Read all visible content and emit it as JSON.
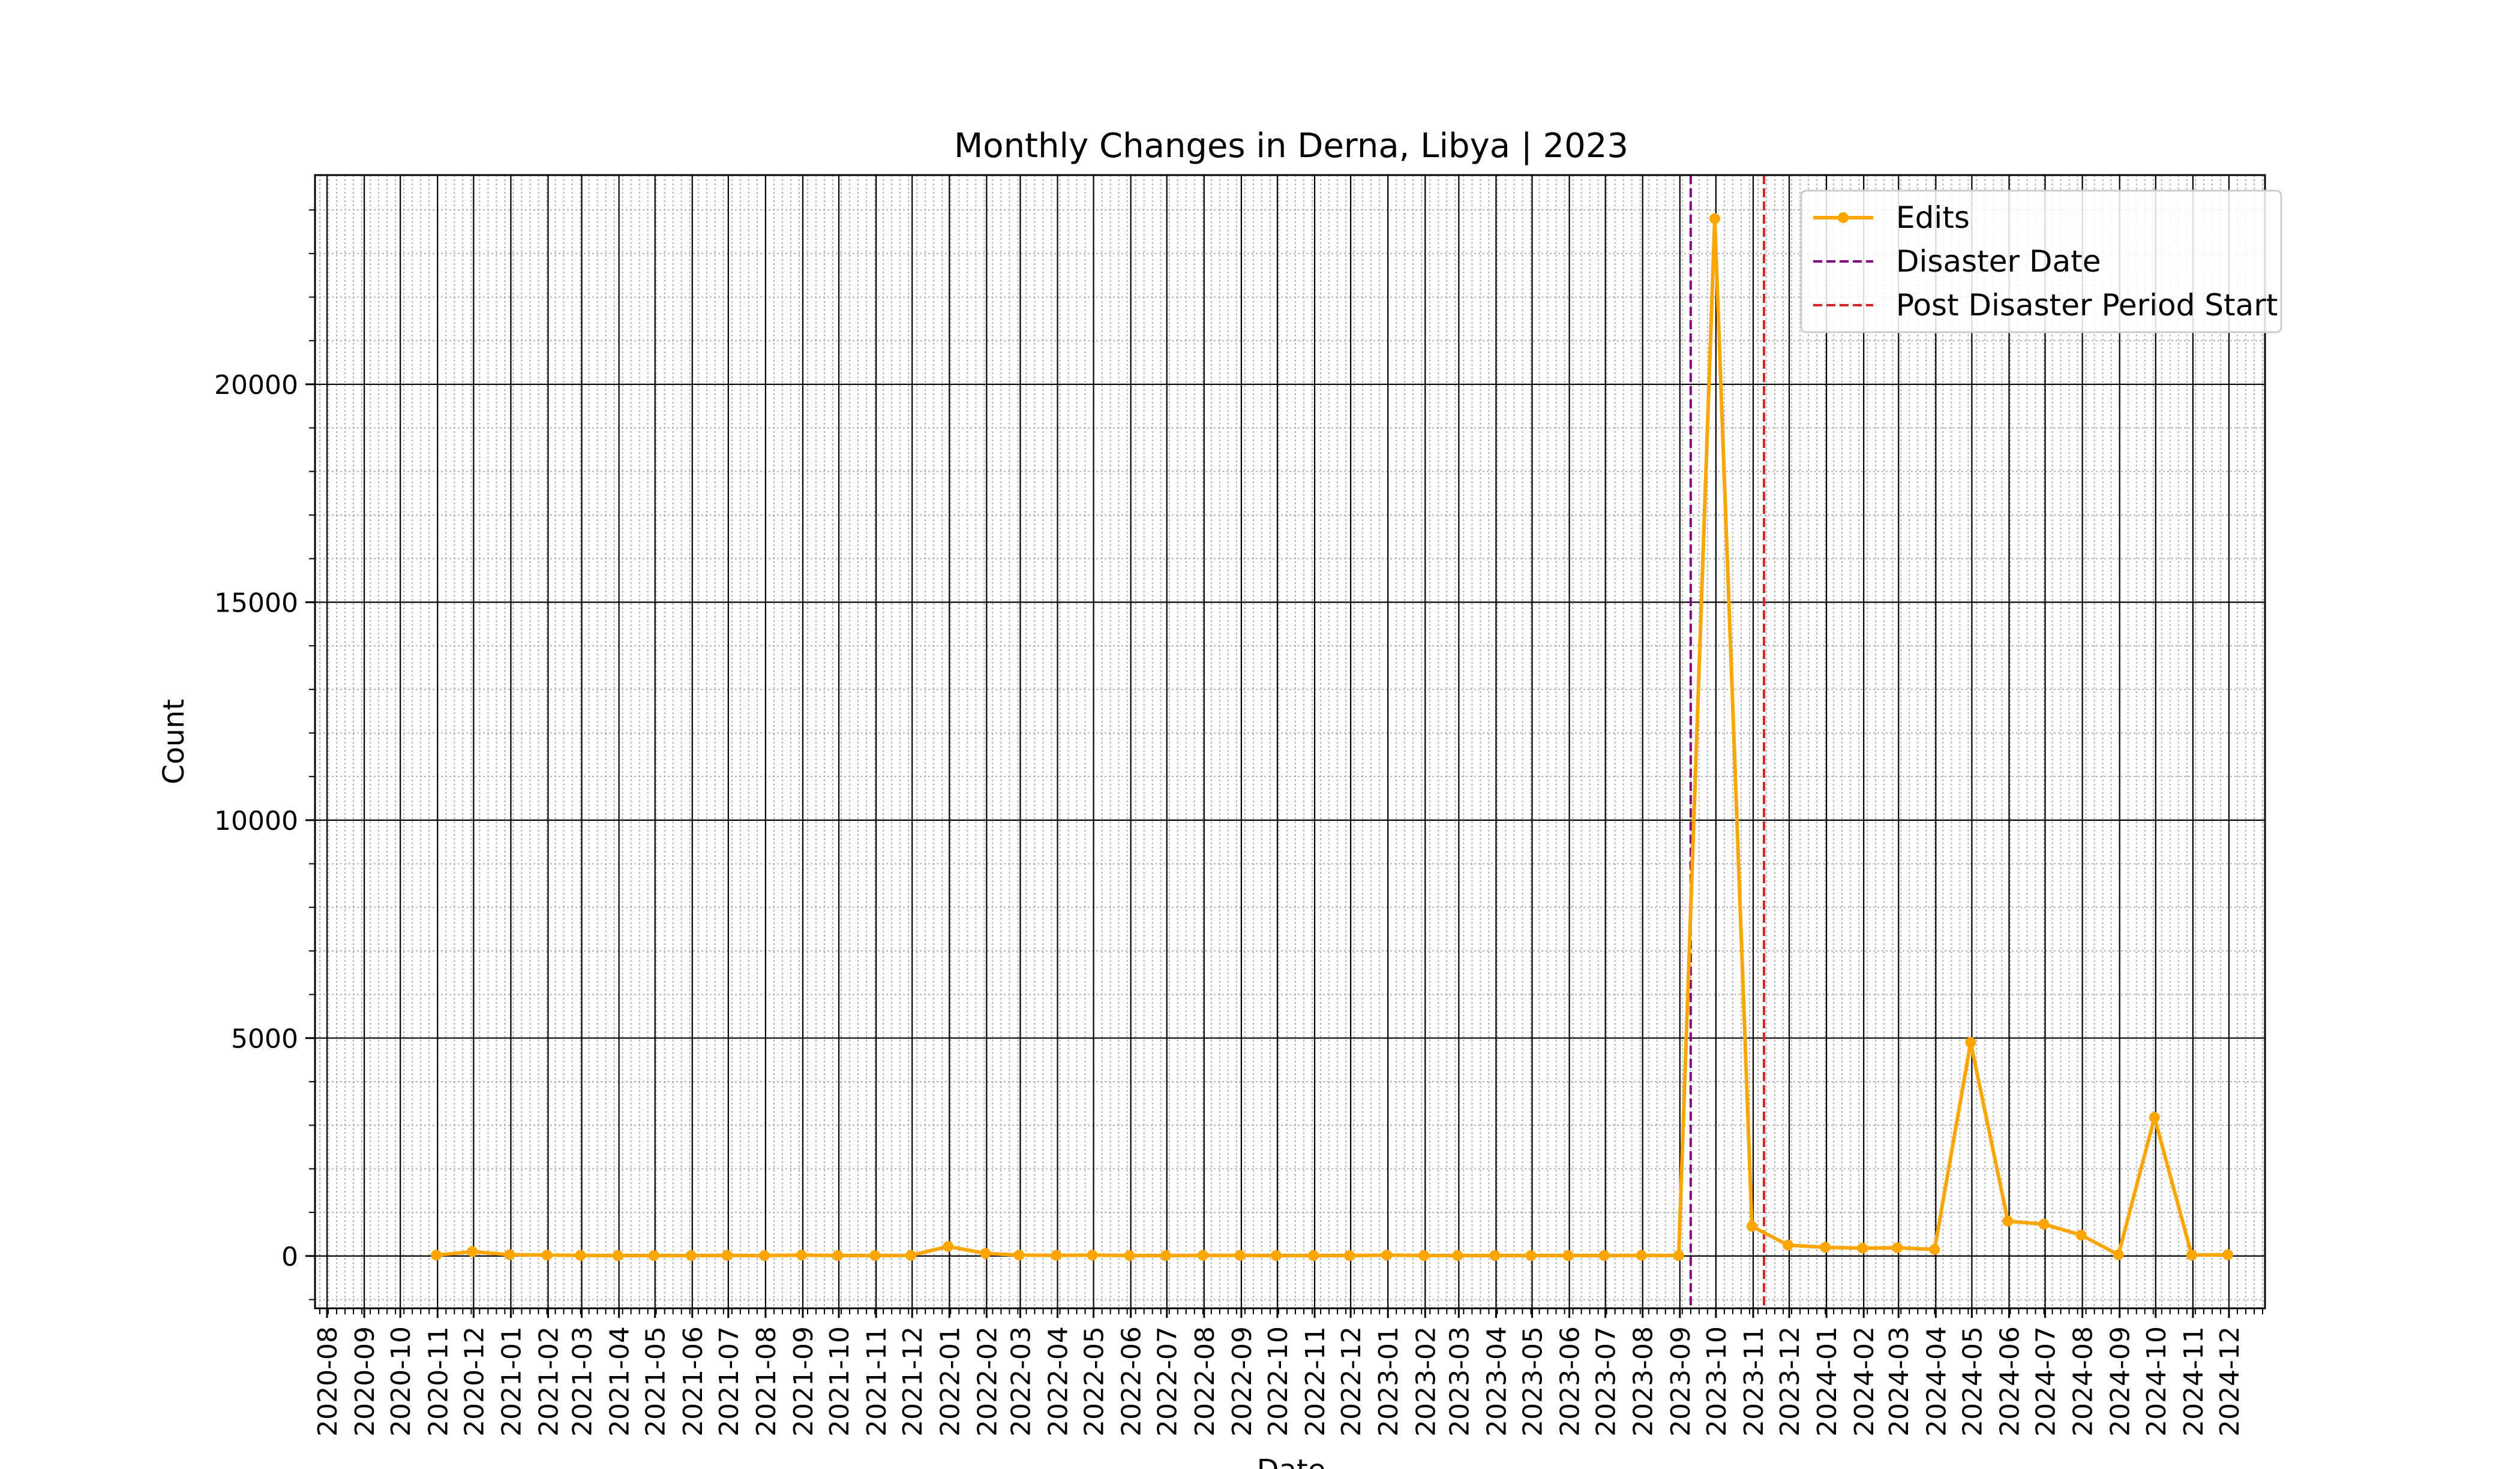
{
  "chart_data": {
    "type": "line",
    "title": "Monthly Changes in Derna, Libya | 2023",
    "xlabel": "Date",
    "ylabel": "Count",
    "x_axis_type": "date",
    "xlim": [
      "2020-07-22",
      "2024-12-31"
    ],
    "ylim": [
      -1200,
      24800
    ],
    "y_ticks": [
      0,
      5000,
      10000,
      15000,
      20000
    ],
    "y_tick_labels": [
      "0",
      "5000",
      "10000",
      "15000",
      "20000"
    ],
    "x_ticks": [
      "2020-08-01",
      "2020-09-01",
      "2020-10-01",
      "2020-11-01",
      "2020-12-01",
      "2021-01-01",
      "2021-02-01",
      "2021-03-01",
      "2021-04-01",
      "2021-05-01",
      "2021-06-01",
      "2021-07-01",
      "2021-08-01",
      "2021-09-01",
      "2021-10-01",
      "2021-11-01",
      "2021-12-01",
      "2022-01-01",
      "2022-02-01",
      "2022-03-01",
      "2022-04-01",
      "2022-05-01",
      "2022-06-01",
      "2022-07-01",
      "2022-08-01",
      "2022-09-01",
      "2022-10-01",
      "2022-11-01",
      "2022-12-01",
      "2023-01-01",
      "2023-02-01",
      "2023-03-01",
      "2023-04-01",
      "2023-05-01",
      "2023-06-01",
      "2023-07-01",
      "2023-08-01",
      "2023-09-01",
      "2023-10-01",
      "2023-11-01",
      "2023-12-01",
      "2024-01-01",
      "2024-02-01",
      "2024-03-01",
      "2024-04-01",
      "2024-05-01",
      "2024-06-01",
      "2024-07-01",
      "2024-08-01",
      "2024-09-01",
      "2024-10-01",
      "2024-11-01",
      "2024-12-01"
    ],
    "x_tick_labels": [
      "2020-08",
      "2020-09",
      "2020-10",
      "2020-11",
      "2020-12",
      "2021-01",
      "2021-02",
      "2021-03",
      "2021-04",
      "2021-05",
      "2021-06",
      "2021-07",
      "2021-08",
      "2021-09",
      "2021-10",
      "2021-11",
      "2021-12",
      "2022-01",
      "2022-02",
      "2022-03",
      "2022-04",
      "2022-05",
      "2022-06",
      "2022-07",
      "2022-08",
      "2022-09",
      "2022-10",
      "2022-11",
      "2022-12",
      "2023-01",
      "2023-02",
      "2023-03",
      "2023-04",
      "2023-05",
      "2023-06",
      "2023-07",
      "2023-08",
      "2023-09",
      "2023-10",
      "2023-11",
      "2023-12",
      "2024-01",
      "2024-02",
      "2024-03",
      "2024-04",
      "2024-05",
      "2024-06",
      "2024-07",
      "2024-08",
      "2024-09",
      "2024-10",
      "2024-11",
      "2024-12"
    ],
    "grid": true,
    "minor_grid": true,
    "legend_position": "top-right",
    "series": [
      {
        "name": "Edits",
        "color": "#ffa500",
        "marker": "circle",
        "x": [
          "2020-10-31",
          "2020-11-30",
          "2020-12-31",
          "2021-01-31",
          "2021-02-28",
          "2021-03-31",
          "2021-04-30",
          "2021-05-31",
          "2021-06-30",
          "2021-07-31",
          "2021-08-31",
          "2021-09-30",
          "2021-10-31",
          "2021-11-30",
          "2021-12-31",
          "2022-01-31",
          "2022-02-28",
          "2022-03-31",
          "2022-04-30",
          "2022-05-31",
          "2022-06-30",
          "2022-07-31",
          "2022-08-31",
          "2022-09-30",
          "2022-10-31",
          "2022-11-30",
          "2022-12-31",
          "2023-01-31",
          "2023-02-28",
          "2023-03-31",
          "2023-04-30",
          "2023-05-31",
          "2023-06-30",
          "2023-07-31",
          "2023-08-31",
          "2023-09-30",
          "2023-10-31",
          "2023-11-30",
          "2023-12-31",
          "2024-01-31",
          "2024-02-29",
          "2024-03-31",
          "2024-04-30",
          "2024-05-31",
          "2024-06-30",
          "2024-07-31",
          "2024-08-31",
          "2024-09-30",
          "2024-10-31",
          "2024-11-30"
        ],
        "y": [
          20,
          100,
          30,
          20,
          15,
          10,
          10,
          10,
          15,
          10,
          20,
          10,
          10,
          15,
          220,
          60,
          20,
          15,
          20,
          10,
          10,
          15,
          15,
          10,
          10,
          10,
          20,
          10,
          10,
          10,
          10,
          10,
          10,
          15,
          10,
          23800,
          680,
          250,
          200,
          180,
          190,
          150,
          4900,
          800,
          730,
          480,
          30,
          3180,
          20,
          30
        ]
      }
    ],
    "vlines": [
      {
        "name": "Disaster Date",
        "x": "2023-09-10",
        "color": "#800080",
        "style": "dashed"
      },
      {
        "name": "Post Disaster Period Start",
        "x": "2023-11-10",
        "color": "#d62728",
        "style": "dashed"
      }
    ]
  }
}
